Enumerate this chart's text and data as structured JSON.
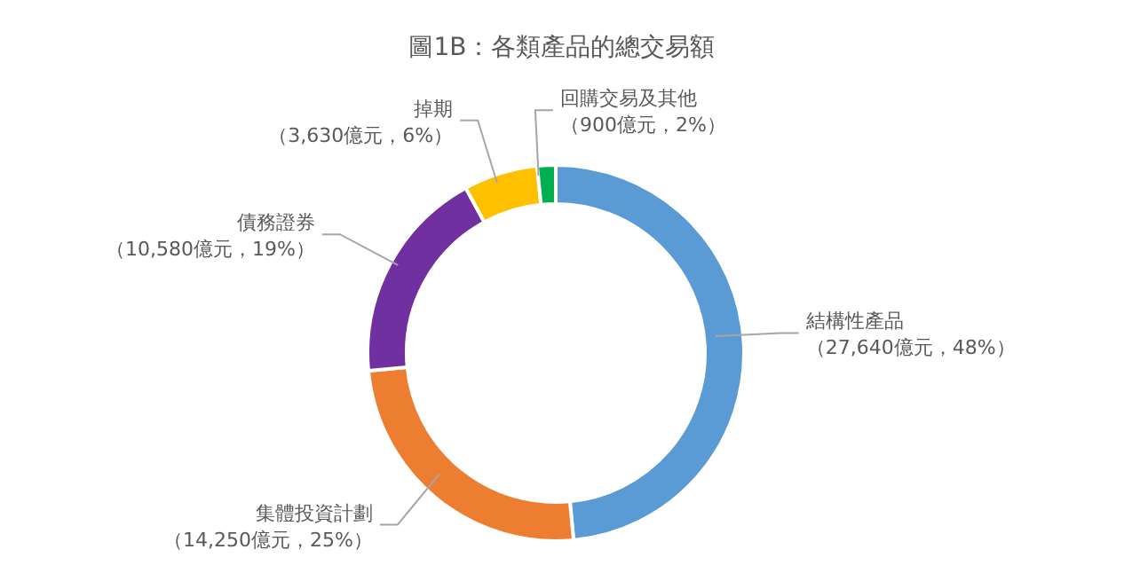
{
  "chart_data": {
    "type": "donut",
    "title": "圖1B：各類產品的總交易額",
    "categories": [
      "結構性產品",
      "集體投資計劃",
      "債務證券",
      "掉期",
      "回購交易及其他"
    ],
    "values": [
      27640,
      14250,
      10580,
      3630,
      900
    ],
    "value_labels": [
      "（27,640億元，48%）",
      "（14,250億元，25%）",
      "（10,580億元，19%）",
      "（3,630億元，6%）",
      "（900億元，2%）"
    ],
    "colors": [
      "#5b9bd5",
      "#ed7d31",
      "#7030a0",
      "#ffc000",
      "#00b050"
    ],
    "legend": false
  }
}
